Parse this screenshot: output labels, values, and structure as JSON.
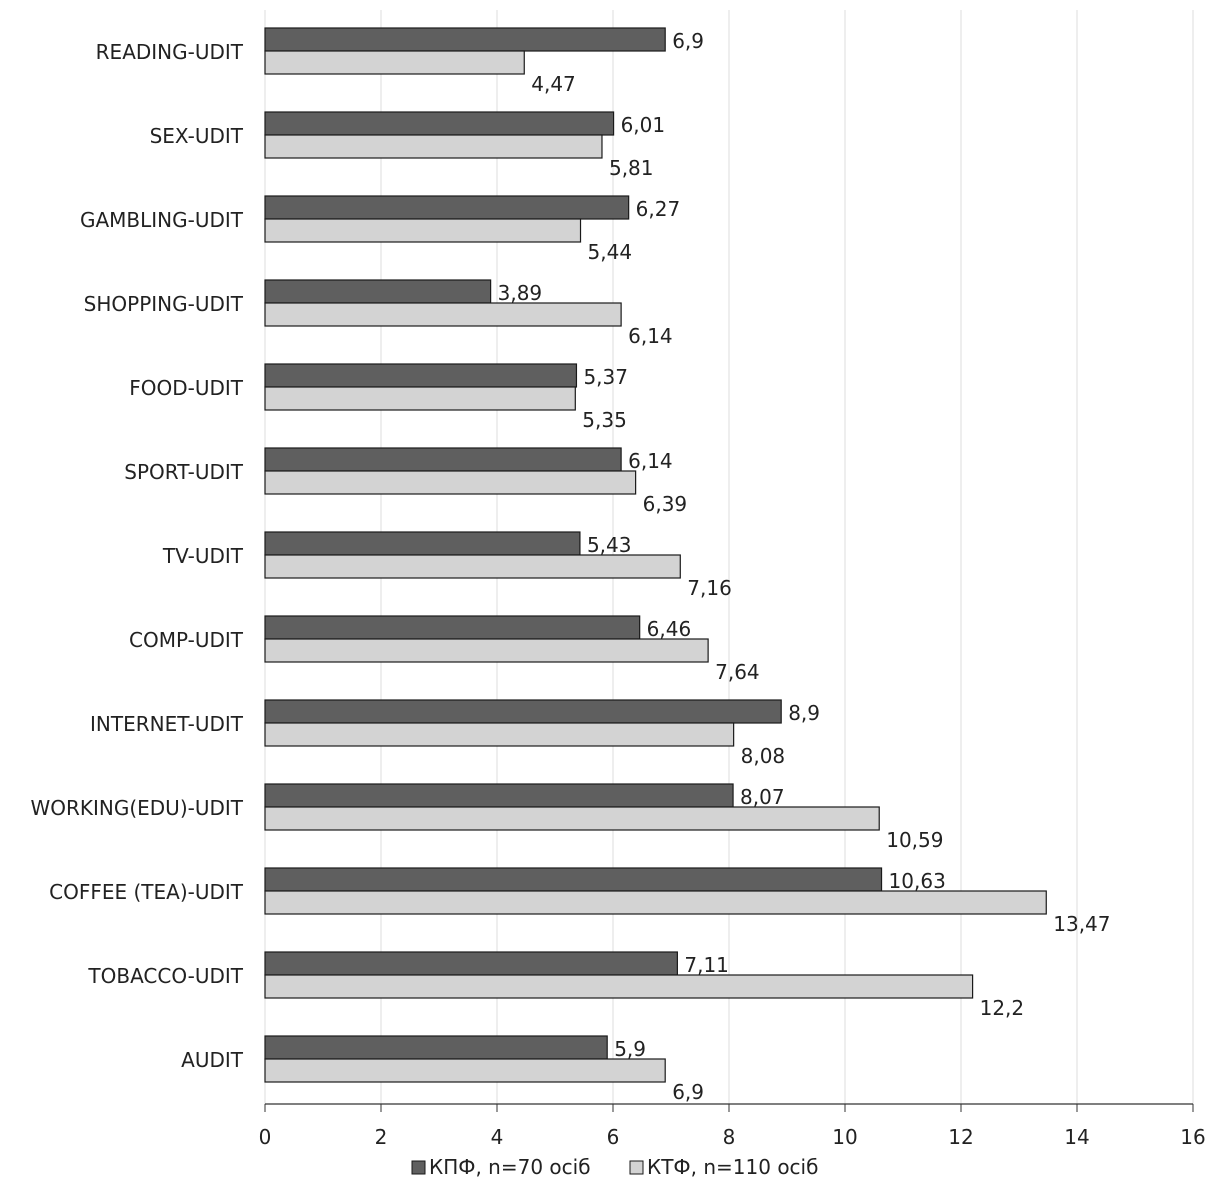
{
  "chart_data": {
    "type": "bar",
    "orientation": "horizontal",
    "categories": [
      "READING-UDIT",
      "SEX-UDIT",
      "GAMBLING-UDIT",
      "SHOPPING-UDIT",
      "FOOD-UDIT",
      "SPORT-UDIT",
      "TV-UDIT",
      "COMP-UDIT",
      "INTERNET-UDIT",
      "WORKING(EDU)-UDIT",
      "COFFEE (TEA)-UDIT",
      "TOBACCO-UDIT",
      "AUDIT"
    ],
    "series": [
      {
        "name": "КПФ, n=70 осіб",
        "color": "#5f5f5f",
        "values": [
          6.9,
          6.01,
          6.27,
          3.89,
          5.37,
          6.14,
          5.43,
          6.46,
          8.9,
          8.07,
          10.63,
          7.11,
          5.9
        ],
        "labels": [
          "6,9",
          "6,01",
          "6,27",
          "3,89",
          "5,37",
          "6,14",
          "5,43",
          "6,46",
          "8,9",
          "8,07",
          "10,63",
          "7,11",
          "5,9"
        ]
      },
      {
        "name": "КТФ, n=110 осіб",
        "color": "#d3d3d3",
        "values": [
          4.47,
          5.81,
          5.44,
          6.14,
          5.35,
          6.39,
          7.16,
          7.64,
          8.08,
          10.59,
          13.47,
          12.2,
          6.9
        ],
        "labels": [
          "4,47",
          "5,81",
          "5,44",
          "6,14",
          "5,35",
          "6,39",
          "7,16",
          "7,64",
          "8,08",
          "10,59",
          "13,47",
          "12,2",
          "6,9"
        ]
      }
    ],
    "xlim": [
      0,
      16
    ],
    "xticks": [
      "0",
      "2",
      "4",
      "6",
      "8",
      "10",
      "12",
      "14",
      "16"
    ],
    "xlabel": "",
    "ylabel": "",
    "title": "",
    "grid": "vertical",
    "legend": "bottom-center"
  }
}
